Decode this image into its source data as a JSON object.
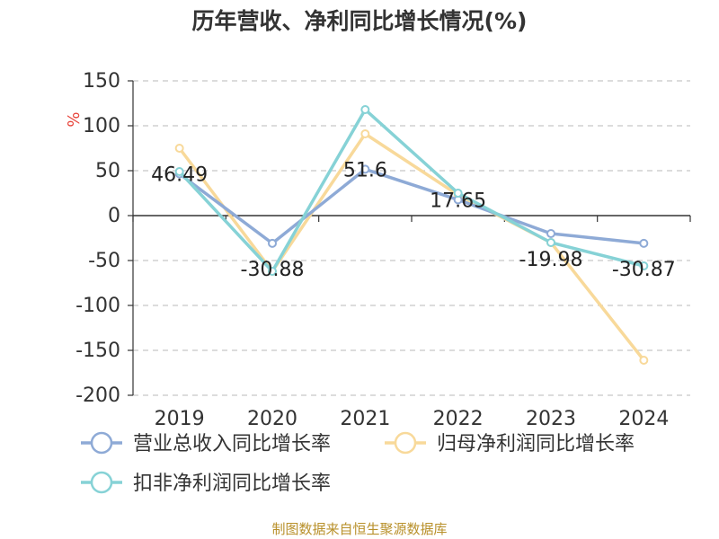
{
  "chart_data": {
    "type": "line",
    "title": "历年营收、净利同比增长情况(%)",
    "ylabel": "%",
    "categories": [
      "2019",
      "2020",
      "2021",
      "2022",
      "2023",
      "2024"
    ],
    "ylim": [
      -200,
      150
    ],
    "yticks": [
      150,
      100,
      50,
      0,
      -50,
      -100,
      -150,
      -200
    ],
    "grid": true,
    "legend_position": "bottom",
    "series": [
      {
        "name": "营业总收入同比增长率",
        "color": "#8eaad6",
        "values": [
          46.49,
          -30.88,
          51.6,
          17.65,
          -19.98,
          -30.87
        ],
        "labels": [
          "46.49",
          "-30.88",
          "51.6",
          "17.65",
          "-19.98",
          "-30.87"
        ]
      },
      {
        "name": "归母净利润同比增长率",
        "color": "#f8d99a",
        "values": [
          75,
          -62,
          91,
          23,
          -30,
          -161
        ]
      },
      {
        "name": "扣非净利润同比增长率",
        "color": "#86d2d6",
        "values": [
          49,
          -62,
          118,
          25,
          -30,
          -56
        ]
      }
    ],
    "source": "制图数据来自恒生聚源数据库"
  }
}
